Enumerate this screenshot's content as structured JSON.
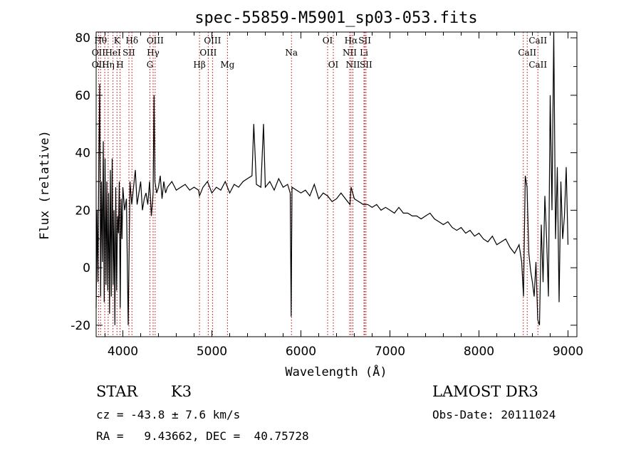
{
  "chart_data": {
    "type": "line",
    "title": "spec-55859-M5901_sp03-053.fits",
    "xlabel": "Wavelength (Å)",
    "ylabel": "Flux (relative)",
    "xlim": [
      3700,
      9100
    ],
    "ylim": [
      -24,
      82
    ],
    "xticks": [
      4000,
      5000,
      6000,
      7000,
      8000,
      9000
    ],
    "yticks": [
      -20,
      0,
      20,
      40,
      60,
      80
    ],
    "series": [
      {
        "name": "flux",
        "x": [
          3700,
          3710,
          3720,
          3730,
          3740,
          3750,
          3760,
          3770,
          3780,
          3790,
          3800,
          3810,
          3820,
          3830,
          3840,
          3850,
          3860,
          3870,
          3880,
          3890,
          3900,
          3910,
          3920,
          3930,
          3940,
          3950,
          3960,
          3970,
          3980,
          3990,
          4000,
          4020,
          4040,
          4060,
          4080,
          4100,
          4120,
          4140,
          4160,
          4180,
          4200,
          4220,
          4240,
          4260,
          4280,
          4300,
          4320,
          4340,
          4350,
          4360,
          4380,
          4400,
          4420,
          4440,
          4460,
          4480,
          4500,
          4550,
          4600,
          4650,
          4700,
          4750,
          4800,
          4850,
          4861,
          4900,
          4950,
          5000,
          5050,
          5100,
          5150,
          5200,
          5250,
          5300,
          5350,
          5400,
          5450,
          5470,
          5500,
          5550,
          5580,
          5600,
          5650,
          5700,
          5750,
          5800,
          5850,
          5880,
          5890,
          5900,
          5950,
          6000,
          6050,
          6100,
          6150,
          6200,
          6250,
          6300,
          6350,
          6400,
          6450,
          6500,
          6550,
          6563,
          6600,
          6650,
          6700,
          6750,
          6800,
          6850,
          6900,
          6950,
          7000,
          7050,
          7100,
          7150,
          7200,
          7250,
          7300,
          7350,
          7400,
          7450,
          7500,
          7550,
          7600,
          7650,
          7700,
          7750,
          7800,
          7850,
          7900,
          7950,
          8000,
          8050,
          8100,
          8150,
          8200,
          8250,
          8300,
          8350,
          8400,
          8450,
          8480,
          8500,
          8520,
          8540,
          8560,
          8580,
          8600,
          8620,
          8640,
          8660,
          8680,
          8700,
          8720,
          8740,
          8760,
          8780,
          8800,
          8820,
          8840,
          8860,
          8880,
          8900,
          8920,
          8940,
          8960,
          8980,
          9000
        ],
        "values": [
          -14,
          20,
          -5,
          38,
          64,
          -10,
          30,
          2,
          44,
          -12,
          38,
          -6,
          30,
          -8,
          26,
          -16,
          34,
          -10,
          38,
          -6,
          20,
          -20,
          28,
          -8,
          18,
          12,
          30,
          -14,
          24,
          10,
          28,
          20,
          24,
          -20,
          30,
          22,
          28,
          34,
          22,
          26,
          30,
          20,
          24,
          26,
          22,
          30,
          18,
          26,
          60,
          30,
          26,
          28,
          32,
          24,
          30,
          26,
          28,
          30,
          27,
          28,
          29,
          27,
          28,
          27,
          25,
          28,
          30,
          26,
          28,
          27,
          30,
          26,
          29,
          28,
          30,
          31,
          32,
          50,
          29,
          28,
          50,
          28,
          30,
          27,
          31,
          28,
          29,
          26,
          -17,
          28,
          27,
          26,
          27,
          25,
          29,
          24,
          26,
          25,
          23,
          24,
          26,
          24,
          22,
          28,
          24,
          23,
          22,
          22,
          21,
          22,
          20,
          21,
          20,
          19,
          21,
          19,
          19,
          18,
          18,
          17,
          18,
          19,
          17,
          16,
          15,
          16,
          14,
          13,
          14,
          12,
          13,
          11,
          12,
          10,
          9,
          11,
          8,
          9,
          10,
          7,
          5,
          8,
          2,
          -10,
          32,
          28,
          5,
          -1,
          -5,
          -10,
          2,
          -18,
          -20,
          15,
          -5,
          25,
          10,
          -10,
          60,
          20,
          82,
          10,
          35,
          -12,
          30,
          10,
          18,
          35,
          8
        ]
      }
    ],
    "annotations": [
      {
        "label": "OII",
        "x": 3727,
        "row": 3
      },
      {
        "label": "Hθ",
        "x": 3750,
        "row": 1
      },
      {
        "label": "OII",
        "x": 3727,
        "row": 2
      },
      {
        "label": "Hη",
        "x": 3835,
        "row": 3
      },
      {
        "label": "K",
        "x": 3934,
        "row": 1
      },
      {
        "label": "HeI",
        "x": 3889,
        "row": 2
      },
      {
        "label": "H",
        "x": 3968,
        "row": 3
      },
      {
        "label": "Hδ",
        "x": 4102,
        "row": 1
      },
      {
        "label": "SII",
        "x": 4068,
        "row": 2
      },
      {
        "label": "OIII",
        "x": 4363,
        "row": 1
      },
      {
        "label": "Hγ",
        "x": 4340,
        "row": 2
      },
      {
        "label": "G",
        "x": 4304,
        "row": 3
      },
      {
        "label": "Hβ",
        "x": 4861,
        "row": 3
      },
      {
        "label": "OIII",
        "x": 4959,
        "row": 2
      },
      {
        "label": "OIII",
        "x": 5007,
        "row": 1
      },
      {
        "label": "Mg",
        "x": 5175,
        "row": 3
      },
      {
        "label": "Na",
        "x": 5894,
        "row": 2
      },
      {
        "label": "OI",
        "x": 6300,
        "row": 1
      },
      {
        "label": "OI",
        "x": 6364,
        "row": 3
      },
      {
        "label": "Hα",
        "x": 6563,
        "row": 1
      },
      {
        "label": "NII",
        "x": 6548,
        "row": 2
      },
      {
        "label": "NII",
        "x": 6584,
        "row": 3
      },
      {
        "label": "SII",
        "x": 6717,
        "row": 1
      },
      {
        "label": "Li",
        "x": 6708,
        "row": 2
      },
      {
        "label": "SII",
        "x": 6731,
        "row": 3
      },
      {
        "label": "CaII",
        "x": 8662,
        "row": 1
      },
      {
        "label": "CaII",
        "x": 8542,
        "row": 2
      },
      {
        "label": "CaII",
        "x": 8662,
        "row": 3
      }
    ],
    "line_positions": [
      3727,
      3750,
      3797,
      3835,
      3889,
      3934,
      3968,
      4068,
      4102,
      4304,
      4340,
      4363,
      4861,
      4959,
      5007,
      5175,
      5894,
      6300,
      6364,
      6548,
      6563,
      6584,
      6708,
      6717,
      6731,
      8498,
      8542,
      8662
    ]
  },
  "info": {
    "object_type": "STAR",
    "subclass": "K3",
    "survey": "LAMOST DR3",
    "cz_line": "cz = -43.8 ± 7.6 km/s",
    "obs_date": "Obs-Date: 20111024",
    "coords": "RA =   9.43662, DEC =  40.75728"
  },
  "colors": {
    "spectrum": "#000000",
    "lines": "#c00000",
    "axes": "#000000"
  }
}
